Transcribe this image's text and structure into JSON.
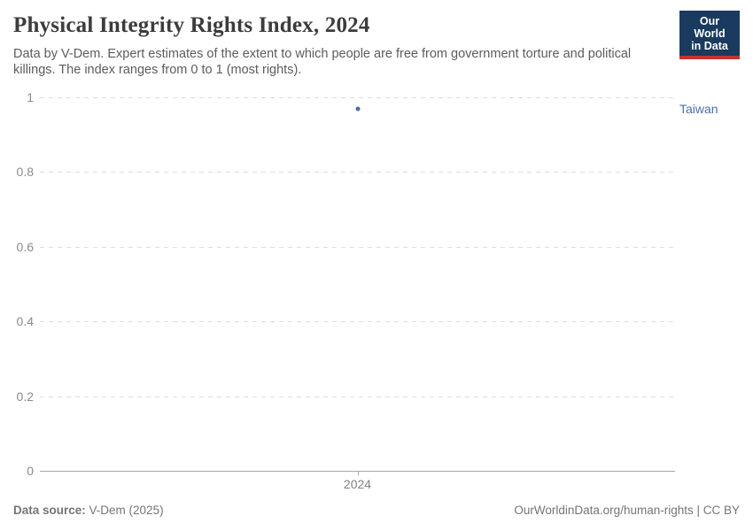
{
  "header": {
    "title": "Physical Integrity Rights Index, 2024",
    "subtitle": "Data by V-Dem. Expert estimates of the extent to which people are free from government torture and political killings. The index ranges from 0 to 1 (most rights).",
    "logo": {
      "line1": "Our World",
      "line2": "in Data",
      "bg_color": "#1a3a5f",
      "stripe_color": "#c5332d"
    }
  },
  "chart_data": {
    "type": "scatter",
    "title": "Physical Integrity Rights Index, 2024",
    "x": [
      2024
    ],
    "xticks": [
      2024
    ],
    "series": [
      {
        "name": "Taiwan",
        "values": [
          0.97
        ],
        "color": "#4c6fa5"
      }
    ],
    "xlabel": "",
    "ylabel": "",
    "ylim": [
      0,
      1
    ],
    "yticks": [
      0,
      0.2,
      0.4,
      0.6,
      0.8,
      1
    ],
    "grid": "horizontal-dashed",
    "legend_position": "right-of-point"
  },
  "footer": {
    "source_label": "Data source:",
    "source_value": " V-Dem (2025)",
    "right_text": "OurWorldinData.org/human-rights | CC BY"
  }
}
